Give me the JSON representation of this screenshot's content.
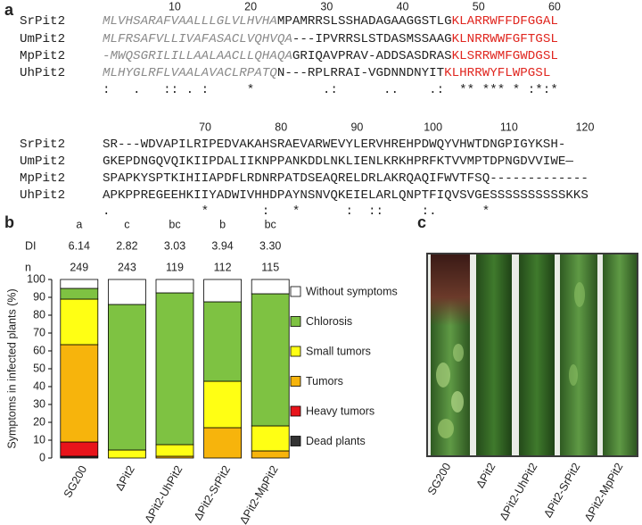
{
  "panel_a": {
    "letter": "a",
    "block1": {
      "ruler": [
        10,
        20,
        30,
        40,
        50,
        60
      ],
      "rows": [
        {
          "name": "SrPit2",
          "signal": "MLVHSARAFVAALLLGLVLHVHA",
          "seq": "MPAMRRSLSSHADAGAAGGSTLG",
          "motif": "KLARRWFFDFGGAL"
        },
        {
          "name": "UmPit2",
          "signal": "MLFRSAFVLLIVAFASACLVQHVQA",
          "seq": "---IPVRRSLSTDASMSSAAG",
          "motif": "KLNRRWWFGFTGSL"
        },
        {
          "name": "MpPit2",
          "signal": "-MWQSGRILILLAALAACLLQHAQA",
          "seq": "GRIQAVPRAV-ADDSASDRAS",
          "motif": "KLSRRWMFGWDGSL"
        },
        {
          "name": "UhPit2",
          "signal": "MLHYGLRFLVAALAVACLRPATQ",
          "seq": "N---RPLRRAI-VGDNNDNYIT",
          "motif": "KLHRRWYFLWPGSL"
        }
      ],
      "conservation": ":   .   :: . :     *         .:      ..    .:  ** *** * :*:*"
    },
    "block2": {
      "ruler": [
        70,
        80,
        90,
        100,
        110,
        120
      ],
      "rows": [
        {
          "name": "SrPit2",
          "seq": "SR---WDVAPILRIPEDVAKAHSRAEVARWEVYLERVHREHPDWQYVHWTDNGPIGYKSH-"
        },
        {
          "name": "UmPit2",
          "seq": "GKEPDNGQVQIKIIPDALIIKNPPANKDDLNKLIENLKRKHPRFKTVVMPTDPNGDVVIWE—"
        },
        {
          "name": "MpPit2",
          "seq": "SPAPKYSPTKIHIIAPDFLRDNRPATDSEAQRELDRLAKRQAQIFWVTFSQ-------------"
        },
        {
          "name": "UhPit2",
          "seq": "APKPPREGEEHKIIYADWIVHHDPAYNSNVQKEIELARLQNPTFIQVSVGESSSSSSSSSSKKS"
        }
      ],
      "conservation": ".            *       :   *      :  ::     :.      *"
    }
  },
  "panel_b": {
    "letter": "b",
    "groups": [
      "a",
      "c",
      "bc",
      "b",
      "bc"
    ],
    "di_label": "DI",
    "di": [
      "6.14",
      "2.82",
      "3.03",
      "3.94",
      "3.30"
    ],
    "n_label": "n",
    "n": [
      "249",
      "243",
      "119",
      "112",
      "115"
    ]
  },
  "chart_data": {
    "type": "stacked_bar",
    "y_label": "Symptoms in infected plants (%)",
    "categories": [
      "SG200",
      "ΔPit2",
      "ΔPit2-UhPit2",
      "ΔPit2-SrPit2",
      "ΔPit2-MpPit2"
    ],
    "series": [
      {
        "name": "Dead plants",
        "color": "#333333",
        "values": [
          1,
          0,
          0,
          0,
          0
        ]
      },
      {
        "name": "Heavy tumors",
        "color": "#e8141b",
        "values": [
          8,
          0,
          0,
          0,
          0
        ]
      },
      {
        "name": "Tumors",
        "color": "#f7b40c",
        "values": [
          54.5,
          0,
          1,
          17,
          4
        ]
      },
      {
        "name": "Small tumors",
        "color": "#ffff14",
        "values": [
          25.5,
          4.5,
          6.5,
          26,
          14
        ]
      },
      {
        "name": "Chlorosis",
        "color": "#7ec242",
        "values": [
          6,
          81.5,
          85,
          44.5,
          74
        ]
      },
      {
        "name": "Without symptoms",
        "color": "#ffffff",
        "values": [
          5,
          14,
          7.5,
          12.5,
          8
        ]
      }
    ],
    "ylim": [
      0,
      100
    ],
    "yticks": [
      0,
      10,
      20,
      30,
      40,
      50,
      60,
      70,
      80,
      90,
      100
    ]
  },
  "panel_c": {
    "letter": "c",
    "labels": [
      "SG200",
      "ΔPit2",
      "ΔPit2-UhPit2",
      "ΔPit2-SrPit2",
      "ΔPit2-MpPit2"
    ]
  }
}
